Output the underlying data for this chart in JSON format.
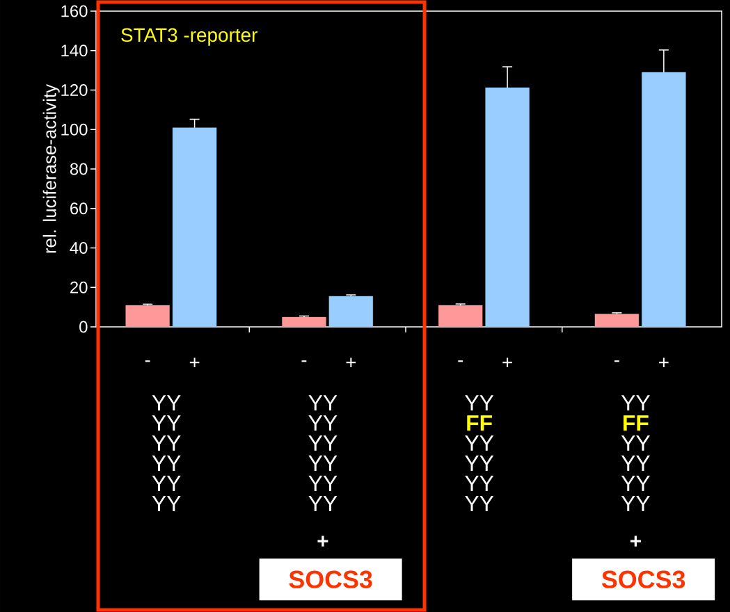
{
  "chart_data": {
    "type": "bar",
    "title": "STAT3 -reporter",
    "ylabel": "rel. luciferase-activity",
    "categories": [
      null,
      null,
      null,
      null
    ],
    "series": [
      {
        "name": "-",
        "color": "#ff9999",
        "values": [
          10.9,
          4.9,
          10.9,
          6.5
        ],
        "errors": [
          0.6,
          0.6,
          0.7,
          0.6
        ]
      },
      {
        "name": "+",
        "color": "#99ccff",
        "values": [
          100.9,
          15.5,
          121.2,
          129
        ],
        "errors": [
          4.3,
          0.7,
          10.6,
          11.3
        ]
      }
    ],
    "ylim": [
      0,
      160
    ],
    "yticks": [
      0,
      20,
      40,
      60,
      80,
      100,
      120,
      140,
      160
    ],
    "annotations": [
      "YY",
      "YY",
      "YY",
      "YY",
      "YY",
      "YY",
      "YY",
      "YY",
      "YY",
      "YY",
      "YY",
      "YY",
      "+",
      "SOCS3",
      "YY",
      "**FF**",
      "YY",
      "YY",
      "YY",
      "YY",
      "YY",
      "**FF**",
      "YY",
      "YY",
      "YY",
      "YY",
      "+",
      "SOCS3"
    ]
  }
}
